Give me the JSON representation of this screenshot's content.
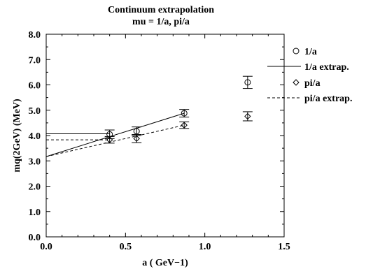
{
  "chart_data": {
    "type": "scatter",
    "title": "Continuum extrapolation",
    "subtitle": "mu = 1/a, pi/a",
    "xlabel": "a ( GeV−1)",
    "ylabel": "mq(2GeV)   (MeV)",
    "xlim": [
      0.0,
      1.5
    ],
    "ylim": [
      0.0,
      8.0
    ],
    "x_ticks": [
      "0.0",
      "0.5",
      "1.0",
      "1.5"
    ],
    "y_ticks": [
      "0.0",
      "1.0",
      "2.0",
      "3.0",
      "4.0",
      "5.0",
      "6.0",
      "7.0",
      "8.0"
    ],
    "grid": false,
    "legend_position": "right",
    "series": [
      {
        "name": "1/a",
        "kind": "points",
        "marker": "circle",
        "points": [
          {
            "x": 0.4,
            "y": 4.05,
            "err": 0.17
          },
          {
            "x": 0.57,
            "y": 4.17,
            "err": 0.17
          },
          {
            "x": 0.87,
            "y": 4.88,
            "err": 0.15
          },
          {
            "x": 1.27,
            "y": 6.1,
            "err": 0.24
          }
        ]
      },
      {
        "name": "1/a extrap.",
        "kind": "line",
        "style": "solid",
        "points": [
          {
            "x": 0.0,
            "y": 3.17
          },
          {
            "x": 0.87,
            "y": 4.88
          }
        ],
        "constant": {
          "x0": 0.0,
          "x1": 0.4,
          "y": 4.07
        }
      },
      {
        "name": "pi/a",
        "kind": "points",
        "marker": "diamond",
        "points": [
          {
            "x": 0.4,
            "y": 3.83,
            "err": 0.13
          },
          {
            "x": 0.57,
            "y": 3.88,
            "err": 0.16
          },
          {
            "x": 0.87,
            "y": 4.41,
            "err": 0.13
          },
          {
            "x": 1.27,
            "y": 4.76,
            "err": 0.18
          }
        ]
      },
      {
        "name": "pi/a extrap.",
        "kind": "line",
        "style": "dashed",
        "points": [
          {
            "x": 0.0,
            "y": 3.17
          },
          {
            "x": 0.87,
            "y": 4.41
          }
        ],
        "constant": {
          "x0": 0.0,
          "x1": 0.4,
          "y": 3.83
        }
      }
    ]
  }
}
